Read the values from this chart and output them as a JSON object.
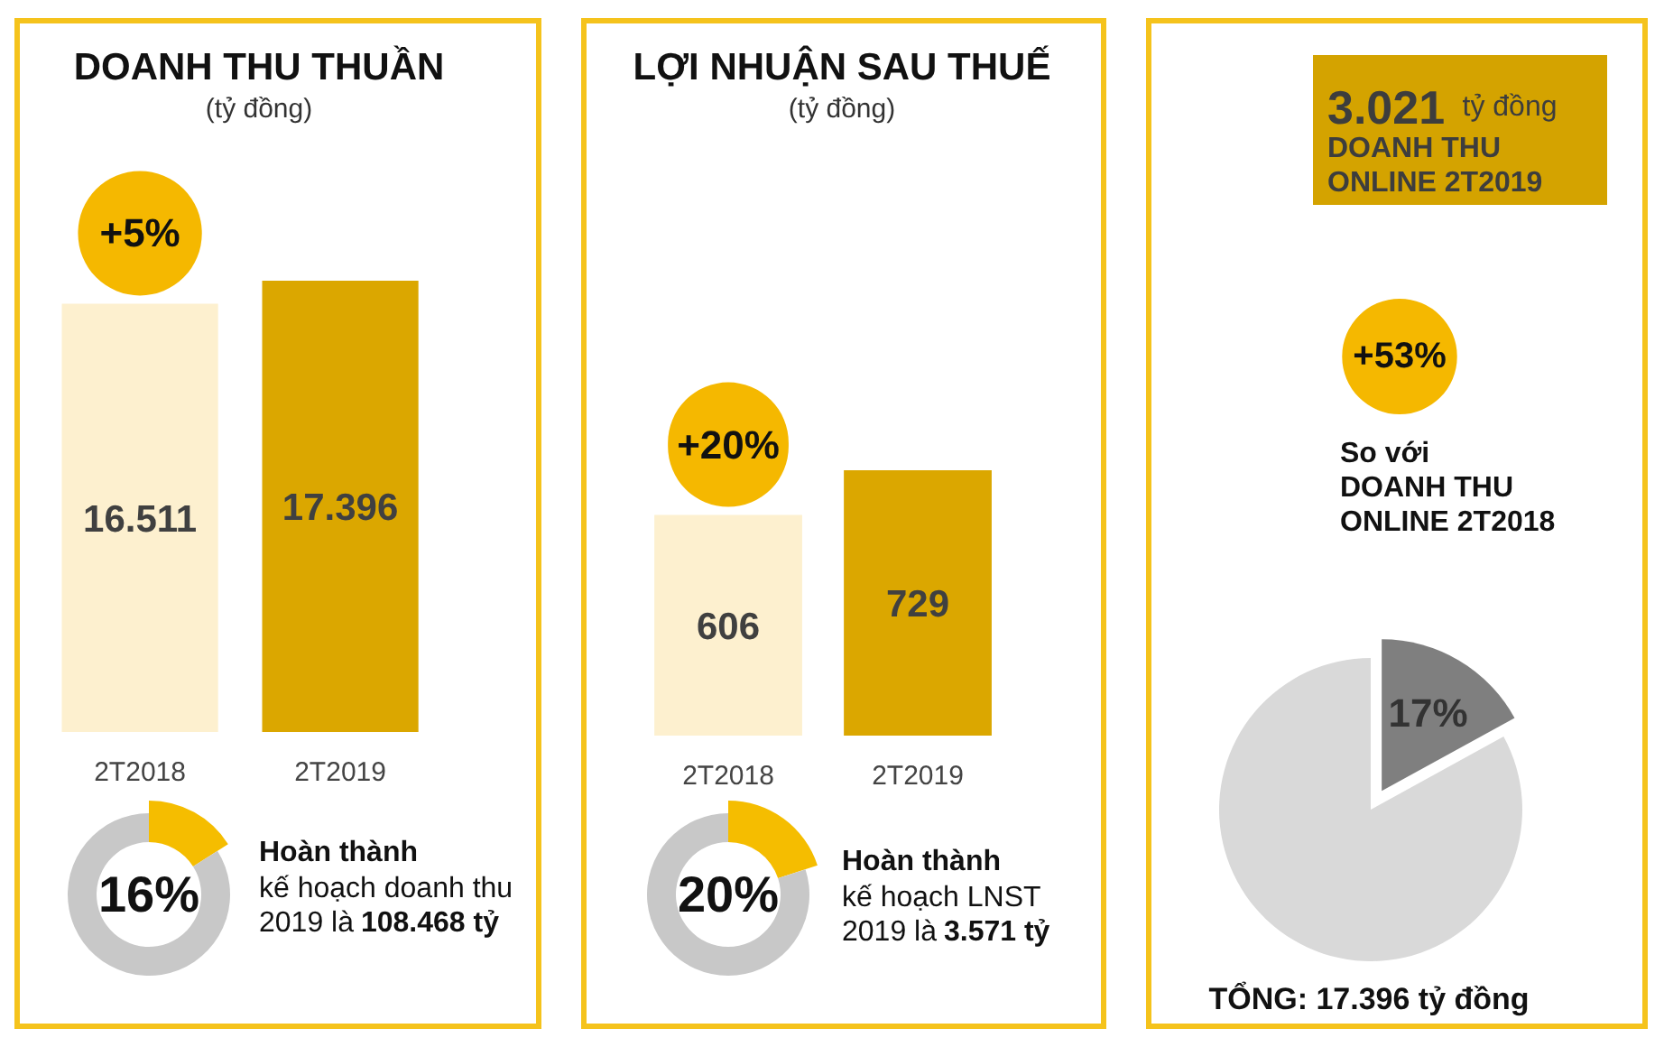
{
  "chart_data": [
    {
      "type": "bar",
      "title": "DOANH THU THUẦN",
      "subtitle": "(tỷ đồng)",
      "categories": [
        "2T2018",
        "2T2019"
      ],
      "values": [
        16511,
        17396
      ],
      "colors": [
        "#fdf0cf",
        "#dba700"
      ],
      "value_labels": [
        "16.511",
        "17.396"
      ],
      "annotations": [
        "+5%"
      ],
      "tick_labels": "x"
    },
    {
      "type": "donut",
      "categories": [
        null,
        null
      ],
      "values": [
        16,
        84
      ],
      "colors": [
        "#f5bd00",
        "#c8c8c8"
      ],
      "annotations": [
        "16%",
        "Hoàn thành",
        "kế hoạch doanh thu",
        "2019 là",
        "108.468 tỷ"
      ]
    },
    {
      "type": "bar",
      "title": "LỢI NHUẬN SAU THUẾ",
      "subtitle": "(tỷ đồng)",
      "categories": [
        "2T2018",
        "2T2019"
      ],
      "values": [
        606,
        729
      ],
      "colors": [
        "#fdf0cf",
        "#dba700"
      ],
      "value_labels": [
        "606",
        "729"
      ],
      "annotations": [
        "+20%"
      ],
      "tick_labels": "x"
    },
    {
      "type": "donut",
      "categories": [
        null,
        null
      ],
      "values": [
        20,
        80
      ],
      "colors": [
        "#f5bd00",
        "#c8c8c8"
      ],
      "annotations": [
        "20%",
        "Hoàn thành",
        "kế hoạch LNST",
        "2019 là",
        "3.571 tỷ"
      ]
    },
    {
      "type": "pie",
      "categories": [
        null,
        null
      ],
      "values": [
        17,
        83
      ],
      "colors": [
        "#7f7f7f",
        "#d9d9d9"
      ],
      "value_labels": [
        "17%",
        null
      ],
      "annotations": [
        "3.021",
        "tỷ đồng",
        "DOANH THU",
        "ONLINE 2T2019",
        "+53%",
        "So với",
        "DOANH THU",
        "ONLINE 2T2018",
        "TỔNG: 17.396 tỷ đồng"
      ]
    }
  ]
}
